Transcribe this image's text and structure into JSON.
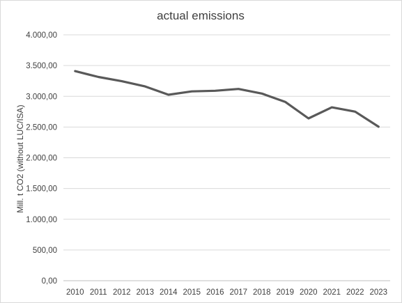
{
  "chart_data": {
    "type": "line",
    "title": "actual emissions",
    "xlabel": "",
    "ylabel": "Mill. t CO2 (without LUC/ISA)",
    "categories": [
      "2010",
      "2011",
      "2012",
      "2013",
      "2014",
      "2015",
      "2016",
      "2017",
      "2018",
      "2019",
      "2020",
      "2021",
      "2022",
      "2023"
    ],
    "series": [
      {
        "values": [
          3410,
          3315,
          3245,
          3160,
          3025,
          3080,
          3090,
          3120,
          3045,
          2910,
          2640,
          2820,
          2750,
          2505
        ],
        "color": "#595959"
      }
    ],
    "ylim": [
      0,
      4000
    ],
    "yticks": [
      0,
      500,
      1000,
      1500,
      2000,
      2500,
      3000,
      3500,
      4000
    ],
    "ytick_labels": [
      "0,00",
      "500,00",
      "1.000,00",
      "1.500,00",
      "2.000,00",
      "2.500,00",
      "3.000,00",
      "3.500,00",
      "4.000,00"
    ],
    "grid": true,
    "legend": "none",
    "gridline_color": "#d9d9d9",
    "axis_color": "#bfbfbf"
  }
}
